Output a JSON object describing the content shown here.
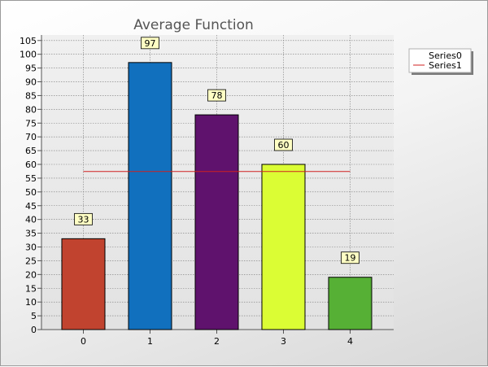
{
  "chart_data": {
    "type": "bar",
    "title": "Average Function",
    "categories": [
      "0",
      "1",
      "2",
      "3",
      "4"
    ],
    "series": [
      {
        "name": "Series0",
        "type": "bar",
        "values": [
          33,
          97,
          78,
          60,
          19
        ],
        "colors": [
          "#c1432f",
          "#1170be",
          "#5f126d",
          "#dbfd34",
          "#56b035"
        ],
        "data_labels": [
          "33",
          "97",
          "78",
          "60",
          "19"
        ]
      },
      {
        "name": "Series1",
        "type": "line",
        "values": [
          57.4,
          57.4,
          57.4,
          57.4,
          57.4
        ],
        "color": "#d02020"
      }
    ],
    "ylim": [
      0,
      107
    ],
    "yticks": [
      0,
      5,
      10,
      15,
      20,
      25,
      30,
      35,
      40,
      45,
      50,
      55,
      60,
      65,
      70,
      75,
      80,
      85,
      90,
      95,
      100,
      105
    ],
    "grid": true,
    "legend_position": "top-right"
  }
}
